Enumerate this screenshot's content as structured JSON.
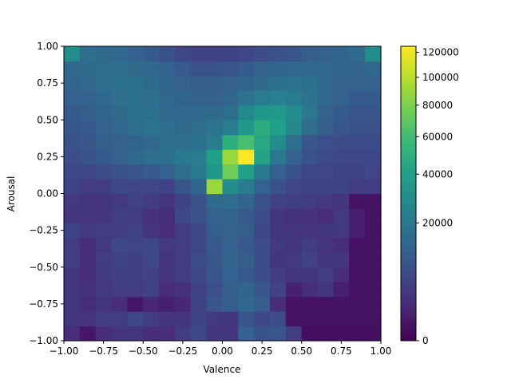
{
  "chart_data": {
    "type": "heatmap",
    "title": "",
    "xlabel": "Valence",
    "ylabel": "Arousal",
    "xlim": [
      -1,
      1
    ],
    "ylim": [
      -1,
      1
    ],
    "bins": 20,
    "grid": false,
    "x_ticks": [
      -1.0,
      -0.75,
      -0.5,
      -0.25,
      0.0,
      0.25,
      0.5,
      0.75,
      1.0
    ],
    "x_tick_labels": [
      "−1.00",
      "−0.75",
      "−0.50",
      "−0.25",
      "0.00",
      "0.25",
      "0.50",
      "0.75",
      "1.00"
    ],
    "y_ticks": [
      -1.0,
      -0.75,
      -0.5,
      -0.25,
      0.0,
      0.25,
      0.5,
      0.75,
      1.0
    ],
    "y_tick_labels": [
      "−1.00",
      "−0.75",
      "−0.50",
      "−0.25",
      "0.00",
      "0.25",
      "0.50",
      "0.75",
      "1.00"
    ],
    "colorbar": {
      "colormap": "viridis",
      "scale": "power",
      "gamma": 0.5,
      "vmin": 0,
      "vmax": 125000,
      "major_ticks": [
        0,
        20000,
        40000,
        60000,
        80000,
        100000,
        120000
      ],
      "major_tick_labels": [
        "0",
        "20000",
        "40000",
        "60000",
        "80000",
        "100000",
        "120000"
      ]
    },
    "colormap_stops": [
      "#440154",
      "#482878",
      "#3e4989",
      "#31688e",
      "#26828e",
      "#1f9e89",
      "#35b779",
      "#6ece58",
      "#b5de2b",
      "#fde725"
    ],
    "values": [
      [
        2000,
        500,
        2000,
        3000,
        3000,
        2000,
        2000,
        4000,
        6000,
        3000,
        3000,
        12000,
        8000,
        9000,
        4000,
        200,
        200,
        200,
        200,
        200
      ],
      [
        3000,
        3000,
        4000,
        4000,
        6000,
        4000,
        3000,
        3000,
        5000,
        3500,
        3000,
        9000,
        6000,
        7000,
        300,
        300,
        300,
        300,
        300,
        300
      ],
      [
        3000,
        2000,
        3000,
        2000,
        500,
        1500,
        1000,
        1500,
        5000,
        9000,
        11000,
        14000,
        11000,
        2000,
        300,
        300,
        300,
        300,
        300,
        300
      ],
      [
        3000,
        2500,
        3500,
        4000,
        4000,
        5000,
        2000,
        2500,
        5000,
        7500,
        11000,
        13000,
        9000,
        5000,
        1000,
        2000,
        3000,
        1000,
        300,
        300
      ],
      [
        3000,
        2000,
        3500,
        4500,
        4500,
        5000,
        3000,
        4000,
        6000,
        9000,
        12000,
        10000,
        7000,
        4000,
        3000,
        3000,
        4000,
        2000,
        300,
        300
      ],
      [
        4500,
        2000,
        4000,
        5000,
        4500,
        6000,
        3000,
        4000,
        7000,
        9000,
        13000,
        11000,
        7000,
        3000,
        3500,
        5000,
        3000,
        3000,
        300,
        300
      ],
      [
        4000,
        2000,
        3500,
        6000,
        5500,
        6000,
        3500,
        4000,
        6000,
        10000,
        12000,
        10000,
        7000,
        3500,
        3000,
        4000,
        3000,
        2000,
        300,
        300
      ],
      [
        5000,
        3500,
        4000,
        4000,
        5000,
        3000,
        2000,
        4000,
        6000,
        11000,
        12000,
        11000,
        6000,
        3000,
        3000,
        3000,
        3000,
        3500,
        1000,
        300
      ],
      [
        3000,
        3000,
        3000,
        4500,
        4000,
        2500,
        2000,
        6000,
        8000,
        12000,
        13000,
        10000,
        7000,
        3000,
        2500,
        2500,
        2000,
        3500,
        1000,
        300
      ],
      [
        3500,
        3000,
        3000,
        3500,
        5000,
        4000,
        3000,
        5000,
        8000,
        15000,
        16000,
        13000,
        8000,
        5000,
        4500,
        4000,
        3500,
        3000,
        300,
        300
      ],
      [
        5000,
        4000,
        4000,
        6000,
        5500,
        5500,
        5000,
        9000,
        13000,
        90000,
        30000,
        22000,
        12000,
        8000,
        5500,
        5000,
        5000,
        5000,
        4000,
        4000
      ],
      [
        6000,
        6000,
        7000,
        8000,
        9000,
        10000,
        12000,
        16000,
        21000,
        35000,
        75000,
        40000,
        20000,
        12000,
        8000,
        6000,
        5500,
        5000,
        5000,
        5500
      ],
      [
        7000,
        8000,
        10000,
        12000,
        14000,
        16000,
        17000,
        20000,
        22000,
        40000,
        90000,
        125000,
        42000,
        20000,
        12000,
        8000,
        6500,
        6000,
        6000,
        6000
      ],
      [
        8000,
        9000,
        11000,
        12000,
        13000,
        14000,
        16000,
        16000,
        17000,
        22000,
        50000,
        62000,
        45000,
        30000,
        16000,
        9000,
        7500,
        7000,
        6500,
        7000
      ],
      [
        9000,
        10000,
        12000,
        14000,
        16000,
        18000,
        16000,
        15000,
        16000,
        18000,
        22000,
        35000,
        48000,
        40000,
        28000,
        16000,
        11000,
        9000,
        8000,
        8000
      ],
      [
        10000,
        11000,
        13000,
        15000,
        17000,
        17000,
        15000,
        14000,
        14000,
        15000,
        17000,
        28000,
        35000,
        36000,
        30000,
        20000,
        12000,
        10000,
        9000,
        9000
      ],
      [
        12000,
        12000,
        14000,
        16000,
        17000,
        16000,
        14000,
        13000,
        12000,
        12000,
        14000,
        18000,
        22000,
        24000,
        22000,
        18000,
        14000,
        12000,
        10000,
        10000
      ],
      [
        13000,
        14000,
        16000,
        17000,
        17000,
        15000,
        13000,
        12000,
        11000,
        11000,
        12000,
        13000,
        15000,
        17000,
        18000,
        17000,
        14000,
        12000,
        12000,
        12000
      ],
      [
        14000,
        15000,
        16000,
        16000,
        15000,
        14000,
        12000,
        10000,
        8000,
        8000,
        9000,
        10000,
        12000,
        13000,
        14000,
        14000,
        14000,
        13000,
        13000,
        14000
      ],
      [
        30000,
        16000,
        15000,
        14000,
        12000,
        10000,
        8000,
        6000,
        5000,
        5000,
        5000,
        6000,
        7000,
        8000,
        9000,
        11000,
        12000,
        13000,
        15000,
        30000
      ]
    ]
  }
}
